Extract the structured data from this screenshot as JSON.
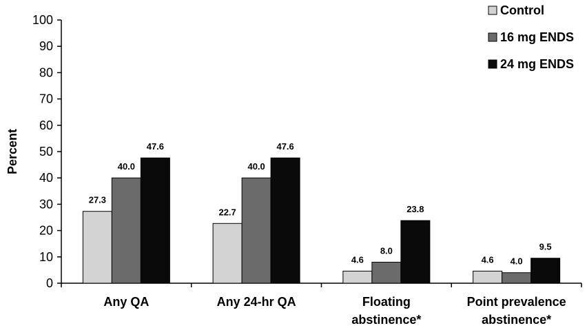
{
  "chart_data": {
    "type": "bar",
    "title": "",
    "xlabel": "",
    "ylabel": "Percent",
    "ylim": [
      0,
      100
    ],
    "yticks": [
      0,
      10,
      20,
      30,
      40,
      50,
      60,
      70,
      80,
      90,
      100
    ],
    "categories": [
      [
        "Any QA"
      ],
      [
        "Any 24-hr QA"
      ],
      [
        "Floating",
        "abstinence*"
      ],
      [
        "Point prevalence",
        "abstinence*"
      ]
    ],
    "series": [
      {
        "name": "Control",
        "color": "#d3d3d3",
        "values": [
          27.3,
          22.7,
          4.6,
          4.6
        ],
        "labels": [
          "27.3",
          "22.7",
          "4.6",
          "4.6"
        ]
      },
      {
        "name": "16 mg ENDS",
        "color": "#6b6b6b",
        "values": [
          40.0,
          40.0,
          8.0,
          4.0
        ],
        "labels": [
          "40.0",
          "40.0",
          "8.0",
          "4.0"
        ]
      },
      {
        "name": "24 mg ENDS",
        "color": "#0a0a0a",
        "values": [
          47.6,
          47.6,
          23.8,
          9.5
        ],
        "labels": [
          "47.6",
          "47.6",
          "23.8",
          "9.5"
        ]
      }
    ],
    "legend": "top-right",
    "grid": false
  }
}
